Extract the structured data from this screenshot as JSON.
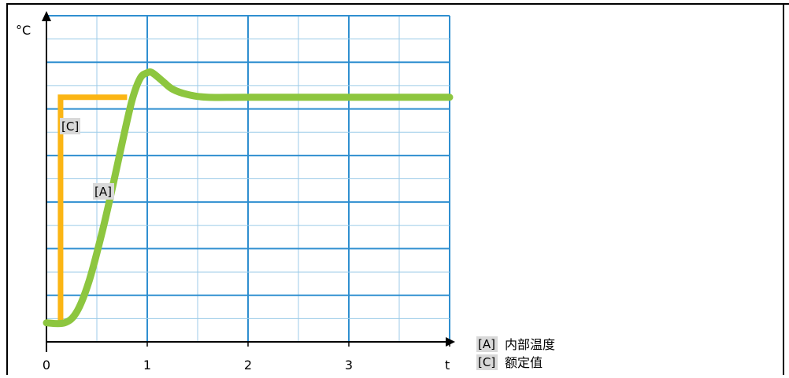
{
  "chart_data": {
    "type": "line",
    "title": "",
    "xlabel": "t",
    "ylabel": "°C",
    "x_ticks": [
      "0",
      "1",
      "2",
      "3"
    ],
    "xlim": [
      0,
      4
    ],
    "ylim": [
      0,
      12
    ],
    "grid": true,
    "legend_position": "bottom-right",
    "series": [
      {
        "name": "[A] 内部温度",
        "tag": "[A]",
        "label": "内部温度",
        "color": "#8dc63f",
        "x": [
          0,
          0.18,
          0.3,
          0.42,
          0.55,
          0.65,
          0.75,
          0.85,
          0.93,
          1.0,
          1.05,
          1.15,
          1.25,
          1.4,
          1.6,
          2.0,
          3.0,
          4.0
        ],
        "y": [
          0.7,
          0.7,
          1.1,
          2.2,
          4.0,
          5.6,
          7.3,
          8.9,
          9.7,
          9.9,
          9.9,
          9.6,
          9.3,
          9.1,
          9.0,
          9.0,
          9.0,
          9.0
        ]
      },
      {
        "name": "[C] 额定值",
        "tag": "[C]",
        "label": "额定值",
        "color": "#fbb514",
        "x": [
          0.14,
          0.14,
          0.8
        ],
        "y": [
          0.7,
          9.0,
          9.0
        ]
      }
    ]
  }
}
